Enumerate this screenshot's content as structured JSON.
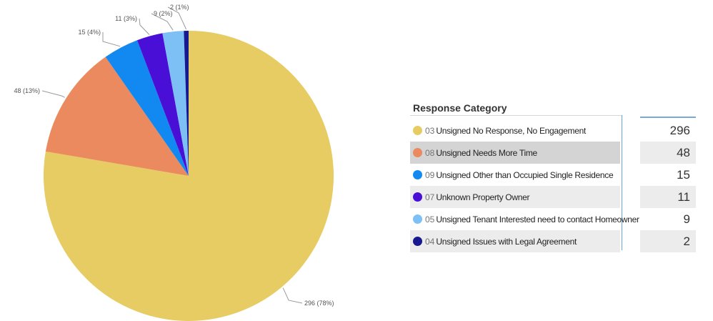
{
  "chart_data": {
    "type": "pie",
    "title": "",
    "slices": [
      {
        "category": "03",
        "value": 296,
        "label": "296 (78%)",
        "color": "#E6CC63"
      },
      {
        "category": "08",
        "value": 48,
        "label": "48 (13%)",
        "color": "#EA8A5E"
      },
      {
        "category": "09",
        "value": 15,
        "label": "15 (4%)",
        "color": "#1289F0"
      },
      {
        "category": "07",
        "value": 11,
        "label": "11 (3%)",
        "color": "#4A0FD6"
      },
      {
        "category": "05",
        "value": 9,
        "label": "9 (2%)",
        "color": "#7CC0F5"
      },
      {
        "category": "04",
        "value": 2,
        "label": "2 (1%)",
        "color": "#16198F"
      }
    ]
  },
  "legend_table": {
    "title": "Response Category",
    "rows": [
      {
        "code": "03",
        "label": "Unsigned No Response, No Engagement",
        "value": "296",
        "color": "#E6CC63"
      },
      {
        "code": "08",
        "label": "Unsigned Needs More Time",
        "value": "48",
        "color": "#EA8A5E"
      },
      {
        "code": "09",
        "label": "Unsigned Other than Occupied Single Residence",
        "value": "15",
        "color": "#1289F0"
      },
      {
        "code": "07",
        "label": "Unknown Property Owner",
        "value": "11",
        "color": "#4A0FD6"
      },
      {
        "code": "05",
        "label": "Unsigned Tenant Interested need to contact Homeowner",
        "value": "9",
        "color": "#7CC0F5"
      },
      {
        "code": "04",
        "label": "Unsigned Issues with Legal Agreement",
        "value": "2",
        "color": "#16198F"
      }
    ]
  }
}
